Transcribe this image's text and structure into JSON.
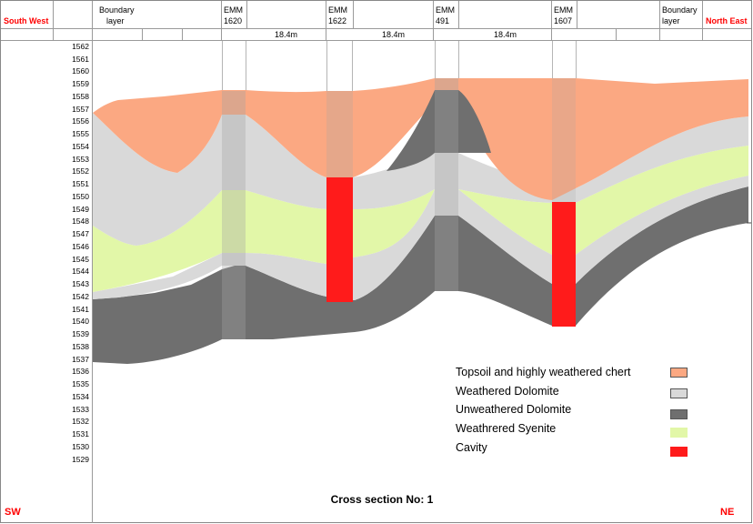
{
  "header": {
    "south_west": "South West",
    "north_east": "North East",
    "boundary_left_1": "Boundary",
    "boundary_left_2": "layer",
    "boundary_right_1": "Boundary",
    "boundary_right_2": "layer",
    "boreholes": [
      {
        "label_1": "EMM",
        "label_2": "1620"
      },
      {
        "label_1": "EMM",
        "label_2": "1622"
      },
      {
        "label_1": "EMM",
        "label_2": "491"
      },
      {
        "label_1": "EMM",
        "label_2": "1607"
      }
    ],
    "spacings": [
      "18.4m",
      "18.4m",
      "18.4m"
    ]
  },
  "y_axis": {
    "max": 1562,
    "min": 1529,
    "ticks": [
      "1562",
      "1561",
      "1560",
      "1559",
      "1558",
      "1557",
      "1556",
      "1555",
      "1554",
      "1553",
      "1552",
      "1551",
      "1550",
      "1549",
      "1548",
      "1547",
      "1546",
      "1545",
      "1544",
      "1543",
      "1542",
      "1541",
      "1540",
      "1539",
      "1538",
      "1537",
      "1536",
      "1535",
      "1534",
      "1533",
      "1532",
      "1531",
      "1530",
      "1529"
    ]
  },
  "legend": [
    {
      "label": "Topsoil and highly weathered chert",
      "color": "#FBA882"
    },
    {
      "label": "Weathered Dolomite",
      "color": "#D9D9D9"
    },
    {
      "label": "Unweathered Dolomite",
      "color": "#6F6F6F"
    },
    {
      "label": "Weathrered Syenite",
      "color": "#E2F7A8"
    },
    {
      "label": "Cavity",
      "color": "#FF1B1B"
    }
  ],
  "colors": {
    "topsoil": "#FBA882",
    "weathered_dolomite": "#D9D9D9",
    "unweathered_dolomite": "#6F6F6F",
    "syenite": "#E2F7A8",
    "cavity": "#FF1B1B",
    "borehole": "#8C8C8C"
  },
  "corners": {
    "sw": "SW",
    "ne": "NE"
  },
  "title": "Cross section No: 1"
}
